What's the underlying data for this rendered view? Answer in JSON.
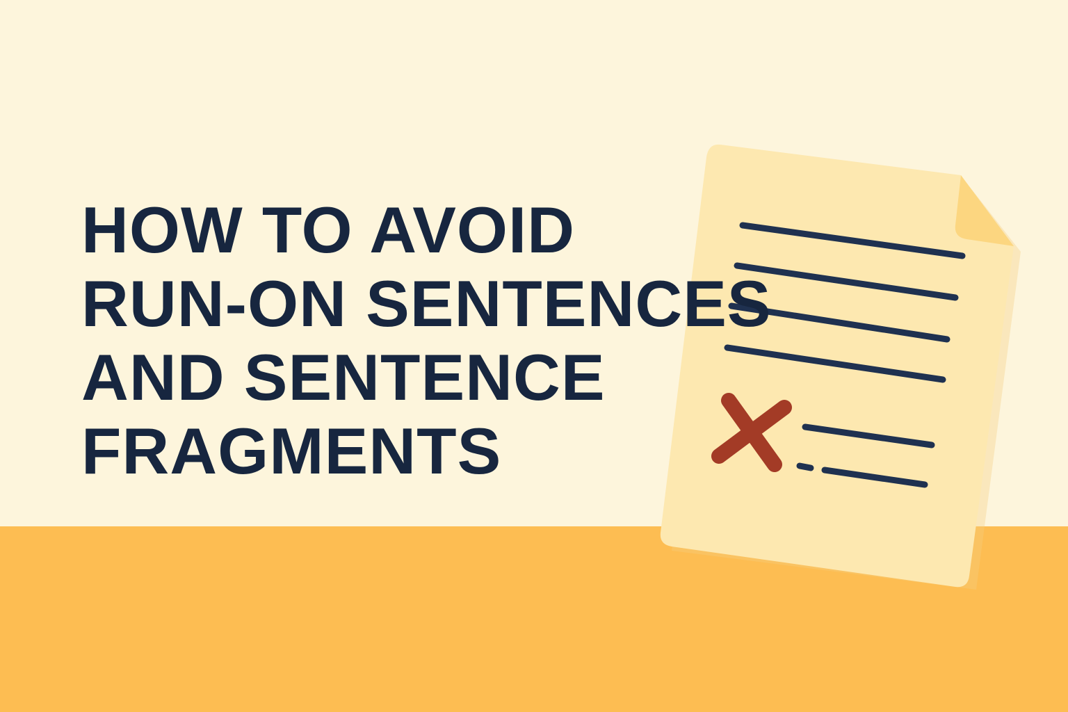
{
  "headline": {
    "lines": [
      "HOW TO AVOID",
      "RUN-ON SENTENCES",
      "AND SENTENCE",
      "FRAGMENTS"
    ]
  },
  "illustration": {
    "icon": "document-with-error-icon",
    "mark": "x-mark-icon"
  },
  "colors": {
    "background": "#fdf5dc",
    "floor": "#fdbd52",
    "text": "#17263f",
    "paper": "#fde8b0",
    "paper_fold": "#fcd680",
    "error_mark": "#a33b26"
  }
}
